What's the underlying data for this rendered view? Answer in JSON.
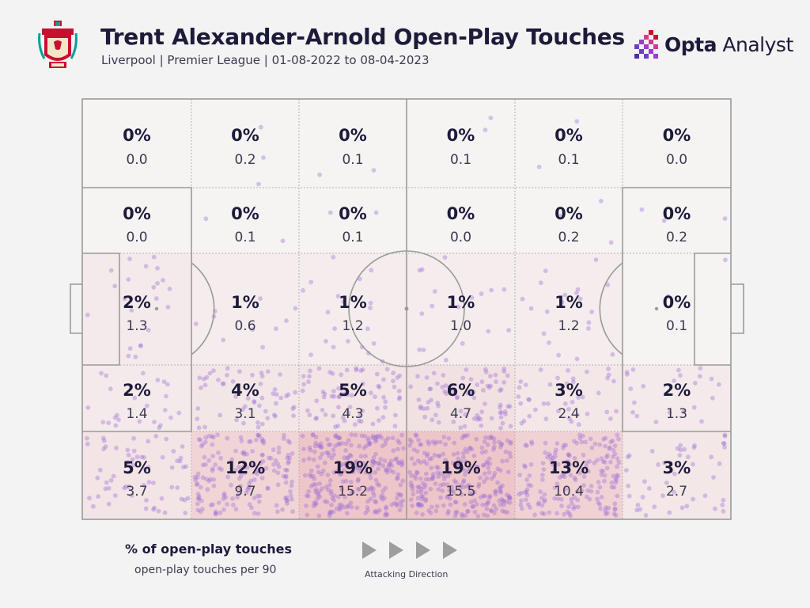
{
  "header": {
    "title": "Trent Alexander-Arnold Open-Play Touches",
    "subtitle": "Liverpool | Premier League | 01-08-2022 to 08-04-2023",
    "crest_icon": "liverpool-crest-icon",
    "brand_bold": "Opta",
    "brand_light": " Analyst",
    "brand_icon": "opta-analyst-logo-icon"
  },
  "legend": {
    "pct_label": "% of open-play touches",
    "rate_label": "open-play touches per 90",
    "direction_label": "Attacking Direction",
    "arrow_icon": "play-arrow-icon"
  },
  "colors": {
    "background": "#f4f3f3",
    "zone_fill": "#e8a3a9",
    "dot": "#9b6fd6",
    "line": "#9a9a9a",
    "text": "#1d1b3a"
  },
  "chart_data": {
    "type": "heatmap",
    "title": "Trent Alexander-Arnold Open-Play Touches",
    "subtitle": "Liverpool | Premier League | 01-08-2022 to 08-04-2023",
    "columns": 6,
    "rows": 5,
    "attacking_direction": "left-to-right",
    "rows_data": [
      {
        "pct": [
          "0%",
          "0%",
          "0%",
          "0%",
          "0%",
          "0%"
        ],
        "per90": [
          "0.0",
          "0.2",
          "0.1",
          "0.1",
          "0.1",
          "0.0"
        ]
      },
      {
        "pct": [
          "0%",
          "0%",
          "0%",
          "0%",
          "0%",
          "0%"
        ],
        "per90": [
          "0.0",
          "0.1",
          "0.1",
          "0.0",
          "0.2",
          "0.2"
        ]
      },
      {
        "pct": [
          "2%",
          "1%",
          "1%",
          "1%",
          "1%",
          "0%"
        ],
        "per90": [
          "1.3",
          "0.6",
          "1.2",
          "1.0",
          "1.2",
          "0.1"
        ]
      },
      {
        "pct": [
          "2%",
          "4%",
          "5%",
          "6%",
          "3%",
          "2%"
        ],
        "per90": [
          "1.4",
          "3.1",
          "4.3",
          "4.7",
          "2.4",
          "1.3"
        ]
      },
      {
        "pct": [
          "5%",
          "12%",
          "19%",
          "19%",
          "13%",
          "3%"
        ],
        "per90": [
          "3.7",
          "9.7",
          "15.2",
          "15.5",
          "10.4",
          "2.7"
        ]
      }
    ]
  }
}
